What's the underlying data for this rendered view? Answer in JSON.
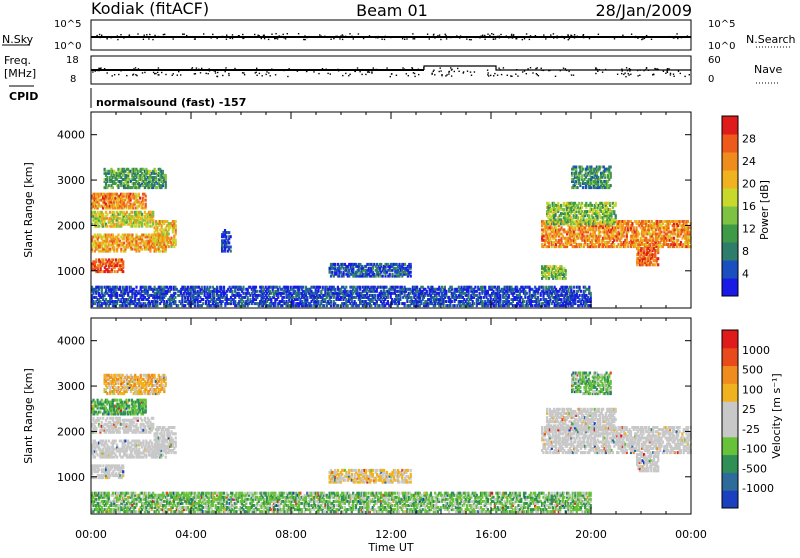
{
  "header": {
    "station": "Kodiak (fitACF)",
    "beam": "Beam 01",
    "date": "28/Jan/2009"
  },
  "strip_panels": {
    "nsky": {
      "label": "N.Sky",
      "tick_top": "10^5",
      "tick_bottom": "10^0"
    },
    "nsearch": {
      "label": "N.Search",
      "tick_top": "10^5",
      "tick_bottom": "10^0"
    },
    "freq": {
      "label_1": "Freq.",
      "label_2": "[MHz]",
      "tick_top": "18",
      "tick_bottom": "8"
    },
    "nave": {
      "label": "Nave",
      "tick_top": "60",
      "tick_bottom": "0"
    },
    "cpid": {
      "label": "CPID",
      "program": "normalsound (fast) -157"
    }
  },
  "chart_data": [
    {
      "type": "heatmap",
      "panel": "power",
      "ylabel": "Slant Range [km]",
      "yticks": [
        "1000",
        "2000",
        "3000",
        "4000"
      ],
      "ylim": [
        180,
        4500
      ],
      "xlim_hours": [
        0,
        24
      ],
      "colorbar": {
        "label": "Power [dB]",
        "ticks": [
          "4",
          "8",
          "12",
          "16",
          "20",
          "24",
          "28"
        ],
        "colors": [
          "#1a1ae6",
          "#1a4fbf",
          "#2e7d6b",
          "#3f9a47",
          "#7dc242",
          "#c8d92c",
          "#f0b21e",
          "#f08c1e",
          "#ee5a1c",
          "#e01b1b"
        ]
      },
      "regions": [
        {
          "t0": 0.0,
          "t1": 1.3,
          "r0": 950,
          "r1": 1250,
          "level": 0.85
        },
        {
          "t0": 0.0,
          "t1": 3.0,
          "r0": 1400,
          "r1": 1800,
          "level": 0.7
        },
        {
          "t0": 0.0,
          "t1": 2.5,
          "r0": 1950,
          "r1": 2300,
          "level": 0.55
        },
        {
          "t0": 0.0,
          "t1": 2.2,
          "r0": 2350,
          "r1": 2700,
          "level": 0.75
        },
        {
          "t0": 0.5,
          "t1": 3.0,
          "r0": 2800,
          "r1": 3250,
          "level": 0.35
        },
        {
          "t0": 2.5,
          "t1": 3.4,
          "r0": 1500,
          "r1": 2100,
          "level": 0.65
        },
        {
          "t0": 5.2,
          "t1": 5.6,
          "r0": 1400,
          "r1": 1900,
          "level": 0.1
        },
        {
          "t0": 9.5,
          "t1": 12.8,
          "r0": 850,
          "r1": 1150,
          "level": 0.15
        },
        {
          "t0": 0.0,
          "t1": 20.0,
          "r0": 200,
          "r1": 650,
          "level": 0.12
        },
        {
          "t0": 18.0,
          "t1": 19.0,
          "r0": 800,
          "r1": 1100,
          "level": 0.45
        },
        {
          "t0": 18.0,
          "t1": 24.0,
          "r0": 1500,
          "r1": 2100,
          "level": 0.75
        },
        {
          "t0": 18.2,
          "t1": 21.0,
          "r0": 2000,
          "r1": 2500,
          "level": 0.45
        },
        {
          "t0": 19.2,
          "t1": 20.8,
          "r0": 2800,
          "r1": 3300,
          "level": 0.3
        },
        {
          "t0": 21.8,
          "t1": 22.7,
          "r0": 1100,
          "r1": 1500,
          "level": 0.85
        }
      ]
    },
    {
      "type": "heatmap",
      "panel": "velocity",
      "ylabel": "Slant Range [km]",
      "xlabel": "Time UT",
      "yticks": [
        "1000",
        "2000",
        "3000",
        "4000"
      ],
      "xticks": [
        "00:00",
        "04:00",
        "08:00",
        "12:00",
        "16:00",
        "20:00",
        "00:00"
      ],
      "ylim": [
        180,
        4500
      ],
      "xlim_hours": [
        0,
        24
      ],
      "colorbar": {
        "label": "Velocity [m s^-1]",
        "ticks": [
          "1000",
          "500",
          "100",
          "25",
          "-25",
          "-100",
          "-500",
          "-1000"
        ],
        "colors": [
          "#1a3fbf",
          "#2e6b9a",
          "#2f8f55",
          "#67c23a",
          "#c8c8c8",
          "#c8c8c8",
          "#f0b21e",
          "#f08c1e",
          "#e84a1c",
          "#e01b1b"
        ]
      },
      "regions": [
        {
          "t0": 0.0,
          "t1": 1.3,
          "r0": 950,
          "r1": 1250,
          "level": 0.5
        },
        {
          "t0": 0.0,
          "t1": 3.0,
          "r0": 1400,
          "r1": 1800,
          "level": 0.5
        },
        {
          "t0": 0.0,
          "t1": 2.5,
          "r0": 1950,
          "r1": 2300,
          "level": 0.5
        },
        {
          "t0": 0.0,
          "t1": 2.2,
          "r0": 2350,
          "r1": 2700,
          "level": 0.3
        },
        {
          "t0": 0.5,
          "t1": 3.0,
          "r0": 2800,
          "r1": 3250,
          "level": 0.65
        },
        {
          "t0": 2.5,
          "t1": 3.4,
          "r0": 1500,
          "r1": 2100,
          "level": 0.5
        },
        {
          "t0": 9.5,
          "t1": 12.8,
          "r0": 850,
          "r1": 1150,
          "level": 0.6
        },
        {
          "t0": 0.0,
          "t1": 20.0,
          "r0": 200,
          "r1": 650,
          "level": 0.35
        },
        {
          "t0": 18.0,
          "t1": 24.0,
          "r0": 1500,
          "r1": 2100,
          "level": 0.5
        },
        {
          "t0": 18.2,
          "t1": 21.0,
          "r0": 2000,
          "r1": 2500,
          "level": 0.5
        },
        {
          "t0": 19.2,
          "t1": 20.8,
          "r0": 2800,
          "r1": 3300,
          "level": 0.35
        },
        {
          "t0": 21.8,
          "t1": 22.7,
          "r0": 1100,
          "r1": 1500,
          "level": 0.5
        }
      ]
    }
  ]
}
